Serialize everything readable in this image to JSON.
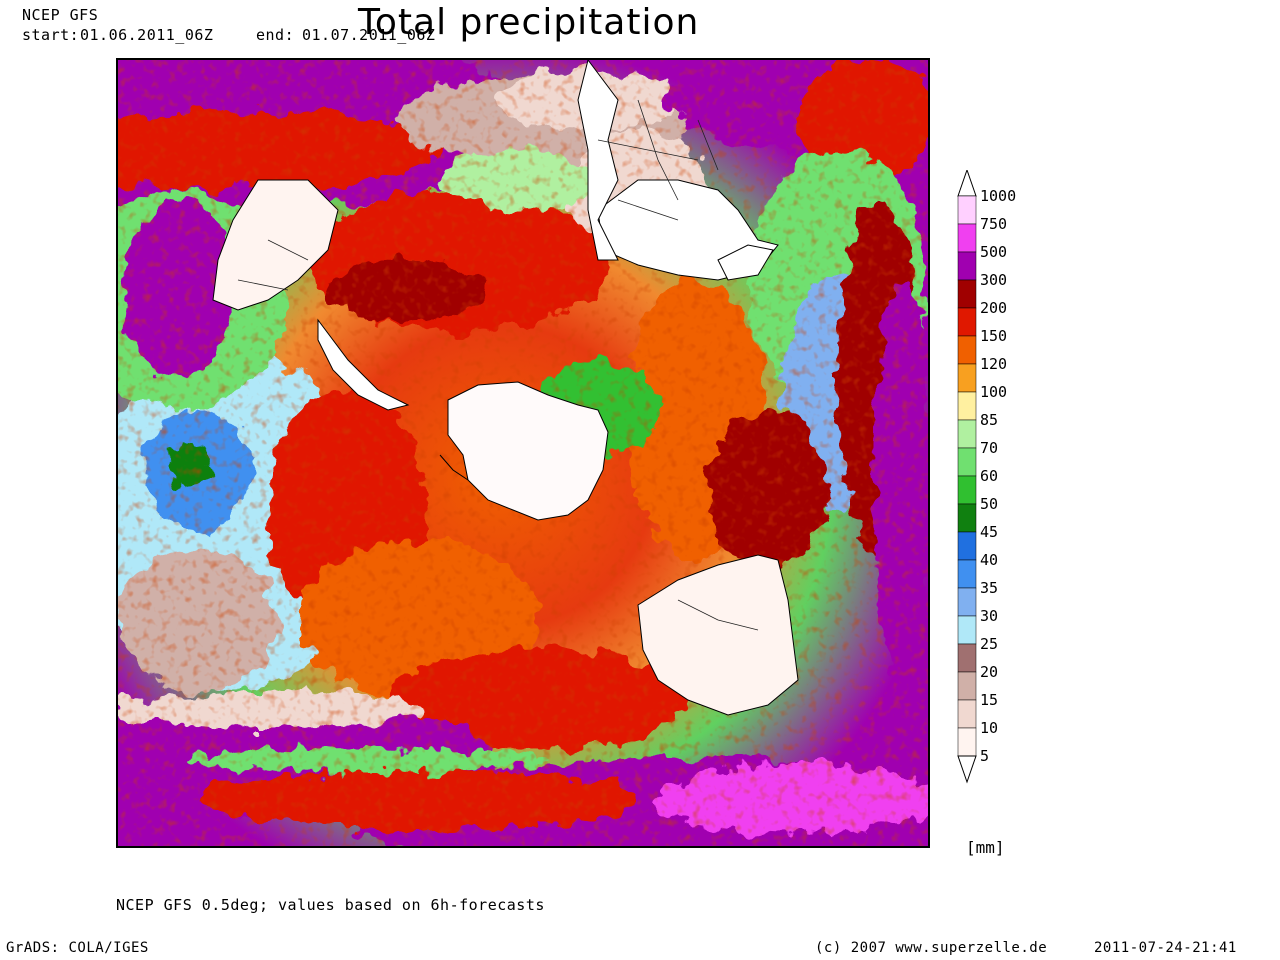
{
  "header": {
    "model": "NCEP GFS",
    "start_label": "start:",
    "start_value": "01.06.2011_06Z",
    "end_label": "end:",
    "end_value": "01.07.2011_06Z",
    "title": "Total precipitation"
  },
  "legend": {
    "unit": "[mm]",
    "levels": [
      "1000",
      "750",
      "500",
      "300",
      "200",
      "150",
      "120",
      "100",
      "85",
      "70",
      "60",
      "50",
      "45",
      "40",
      "35",
      "30",
      "25",
      "20",
      "15",
      "10",
      "5"
    ],
    "colors": [
      "#ffd0ff",
      "#f040f0",
      "#a000b0",
      "#a00000",
      "#e01800",
      "#f06000",
      "#f8a020",
      "#fff0a0",
      "#b0f0a0",
      "#70e070",
      "#30c030",
      "#108010",
      "#2070e0",
      "#4090f0",
      "#80b0f0",
      "#b0e8f8",
      "#a07070",
      "#d0b0a8",
      "#f0d8d0",
      "#fff4f0"
    ]
  },
  "footer": {
    "note": "NCEP GFS 0.5deg; values based on 6h-forecasts",
    "software": "GrADS: COLA/IGES",
    "copyright": "(c) 2007 www.superzelle.de",
    "timestamp": "2011-07-24-21:41"
  }
}
